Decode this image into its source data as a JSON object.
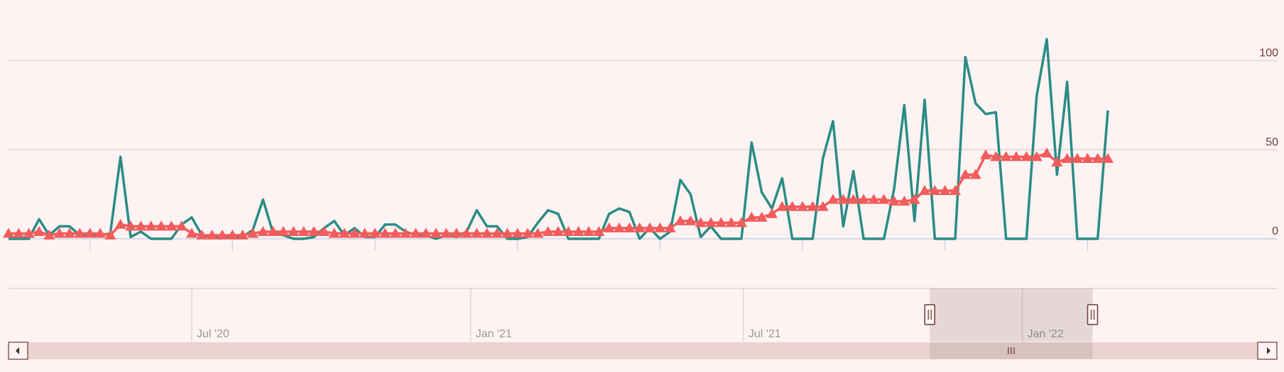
{
  "chart_data": {
    "type": "line",
    "series": [
      {
        "color": "#2a8c85",
        "marker": "none",
        "values": [
          0,
          0,
          0,
          11,
          2,
          7,
          7,
          2,
          2,
          2,
          3,
          46,
          1,
          4,
          0,
          0,
          0,
          8,
          12,
          2,
          1,
          1,
          1,
          1,
          5,
          22,
          3,
          2,
          0,
          0,
          1,
          6,
          10,
          2,
          6,
          1,
          1,
          8,
          8,
          4,
          2,
          2,
          0,
          2,
          1,
          4,
          16,
          7,
          7,
          0,
          0,
          1,
          9,
          16,
          14,
          0,
          0,
          0,
          0,
          14,
          17,
          15,
          0,
          6,
          0,
          4,
          33,
          25,
          1,
          7,
          0,
          0,
          0,
          54,
          26,
          17,
          34,
          0,
          0,
          0,
          45,
          66,
          7,
          38,
          0,
          0,
          0,
          28,
          75,
          10,
          78,
          0,
          0,
          0,
          102,
          76,
          70,
          71,
          0,
          0,
          0,
          80,
          112,
          36,
          88,
          0,
          0,
          0,
          72
        ]
      },
      {
        "color": "#f25c5c",
        "marker": "triangle",
        "values": [
          3,
          3,
          3,
          4,
          2,
          3,
          3,
          3,
          3,
          3,
          2,
          8,
          7,
          7,
          7,
          7,
          7,
          7,
          3,
          2,
          2,
          2,
          2,
          2,
          3,
          4,
          4,
          4,
          4,
          4,
          4,
          4,
          3,
          3,
          3,
          3,
          3,
          3,
          3,
          3,
          3,
          3,
          3,
          3,
          3,
          3,
          3,
          3,
          3,
          3,
          3,
          3,
          3,
          4,
          4,
          4,
          4,
          4,
          4,
          6,
          6,
          6,
          6,
          6,
          6,
          6,
          10,
          10,
          9,
          9,
          9,
          9,
          9,
          12,
          12,
          14,
          18,
          18,
          18,
          18,
          18,
          22,
          22,
          22,
          22,
          22,
          22,
          21,
          21,
          22,
          27,
          27,
          27,
          27,
          36,
          36,
          47,
          46,
          46,
          46,
          46,
          46,
          48,
          43,
          45,
          45,
          45,
          45,
          45
        ]
      }
    ],
    "xlim": [
      0,
      108
    ],
    "xticks": [
      8,
      22,
      36,
      50,
      64,
      78,
      92,
      106
    ],
    "ylim": [
      0,
      120
    ],
    "yticks": [
      0,
      50,
      100
    ],
    "grid": true,
    "navigator_xticks": [
      {
        "value": 18,
        "label": "Jul '20"
      },
      {
        "value": 45.4,
        "label": "Jan '21"
      },
      {
        "value": 72.2,
        "label": "Jul '21"
      },
      {
        "value": 99.6,
        "label": "Jan '22"
      }
    ],
    "navigator_range": [
      90.5,
      106.5
    ]
  }
}
